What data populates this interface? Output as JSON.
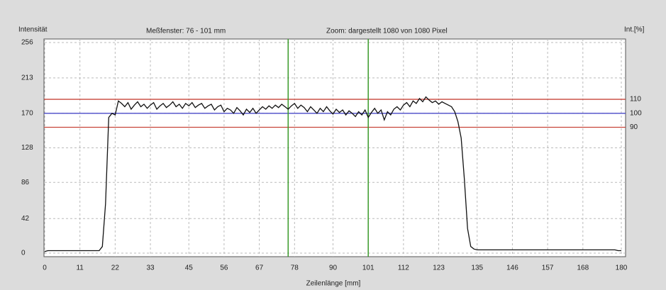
{
  "chart_data": {
    "type": "line",
    "y_label": "Intensität",
    "window_label": "Meßfenster:  76 - 101 mm",
    "zoom_label": "Zoom: dargestellt 1080 von 1080 Pixel",
    "y2_label": "Int.[%]",
    "x_label": "Zeilenlänge [mm]",
    "xlim": [
      0,
      180
    ],
    "xticks": [
      0,
      11,
      22,
      33,
      45,
      56,
      67,
      78,
      90,
      101,
      112,
      123,
      135,
      146,
      157,
      168,
      180
    ],
    "ylim": [
      0,
      256
    ],
    "yticks": [
      0,
      42,
      86,
      128,
      170,
      213,
      256
    ],
    "y2lim": [
      0,
      150.6
    ],
    "y2ticks": [
      90,
      100,
      110
    ],
    "grid": true,
    "limit_lines": [
      {
        "value": 110,
        "color": "#c8453a"
      },
      {
        "value": 100,
        "color": "#4a4ac8"
      },
      {
        "value": 90,
        "color": "#c8453a"
      }
    ],
    "window_lines": {
      "values": [
        76,
        101
      ],
      "color": "#3a9a2a"
    },
    "series": [
      {
        "name": "Intensität",
        "color": "#111111",
        "x": [
          0,
          1,
          2,
          3,
          4,
          5,
          6,
          7,
          8,
          9,
          10,
          11,
          12,
          13,
          14,
          15,
          16,
          17,
          18,
          19,
          20,
          21,
          22,
          23,
          24,
          25,
          26,
          27,
          28,
          29,
          30,
          31,
          32,
          33,
          34,
          35,
          36,
          37,
          38,
          39,
          40,
          41,
          42,
          43,
          44,
          45,
          46,
          47,
          48,
          49,
          50,
          51,
          52,
          53,
          54,
          55,
          56,
          57,
          58,
          59,
          60,
          61,
          62,
          63,
          64,
          65,
          66,
          67,
          68,
          69,
          70,
          71,
          72,
          73,
          74,
          75,
          76,
          77,
          78,
          79,
          80,
          81,
          82,
          83,
          84,
          85,
          86,
          87,
          88,
          89,
          90,
          91,
          92,
          93,
          94,
          95,
          96,
          97,
          98,
          99,
          100,
          101,
          102,
          103,
          104,
          105,
          106,
          107,
          108,
          109,
          110,
          111,
          112,
          113,
          114,
          115,
          116,
          117,
          118,
          119,
          120,
          121,
          122,
          123,
          124,
          125,
          126,
          127,
          128,
          129,
          130,
          131,
          132,
          133,
          134,
          135,
          136,
          137,
          138,
          139,
          140,
          141,
          142,
          143,
          144,
          145,
          146,
          147,
          148,
          149,
          150,
          151,
          152,
          153,
          154,
          155,
          156,
          157,
          158,
          159,
          160,
          161,
          162,
          163,
          164,
          165,
          166,
          167,
          168,
          169,
          170,
          171,
          172,
          173,
          174,
          175,
          176,
          177,
          178,
          179,
          180
        ],
        "values": [
          2,
          3,
          3,
          3,
          3,
          3,
          3,
          3,
          3,
          3,
          3,
          3,
          3,
          3,
          3,
          3,
          3,
          3,
          8,
          60,
          165,
          170,
          168,
          185,
          182,
          178,
          183,
          175,
          180,
          184,
          178,
          181,
          176,
          180,
          183,
          175,
          179,
          182,
          177,
          180,
          184,
          178,
          181,
          176,
          182,
          179,
          183,
          177,
          180,
          182,
          176,
          179,
          181,
          174,
          178,
          180,
          172,
          176,
          174,
          170,
          177,
          173,
          168,
          175,
          171,
          176,
          170,
          174,
          178,
          175,
          179,
          176,
          180,
          177,
          181,
          178,
          175,
          179,
          182,
          176,
          180,
          177,
          172,
          178,
          174,
          170,
          176,
          172,
          178,
          173,
          169,
          175,
          171,
          174,
          168,
          173,
          170,
          166,
          172,
          168,
          174,
          165,
          171,
          176,
          170,
          174,
          162,
          172,
          168,
          175,
          178,
          174,
          180,
          183,
          178,
          185,
          182,
          188,
          184,
          190,
          186,
          183,
          185,
          181,
          184,
          182,
          180,
          178,
          172,
          160,
          140,
          90,
          30,
          8,
          5,
          4,
          4,
          4,
          4,
          4,
          4,
          4,
          4,
          4,
          4,
          4,
          4,
          4,
          4,
          4,
          4,
          4,
          4,
          4,
          4,
          4,
          4,
          4,
          4,
          4,
          4,
          4,
          4,
          4,
          4,
          4,
          4,
          4,
          4,
          4,
          4,
          4,
          4,
          4,
          4,
          4,
          4,
          4,
          4,
          3,
          3
        ]
      }
    ]
  }
}
